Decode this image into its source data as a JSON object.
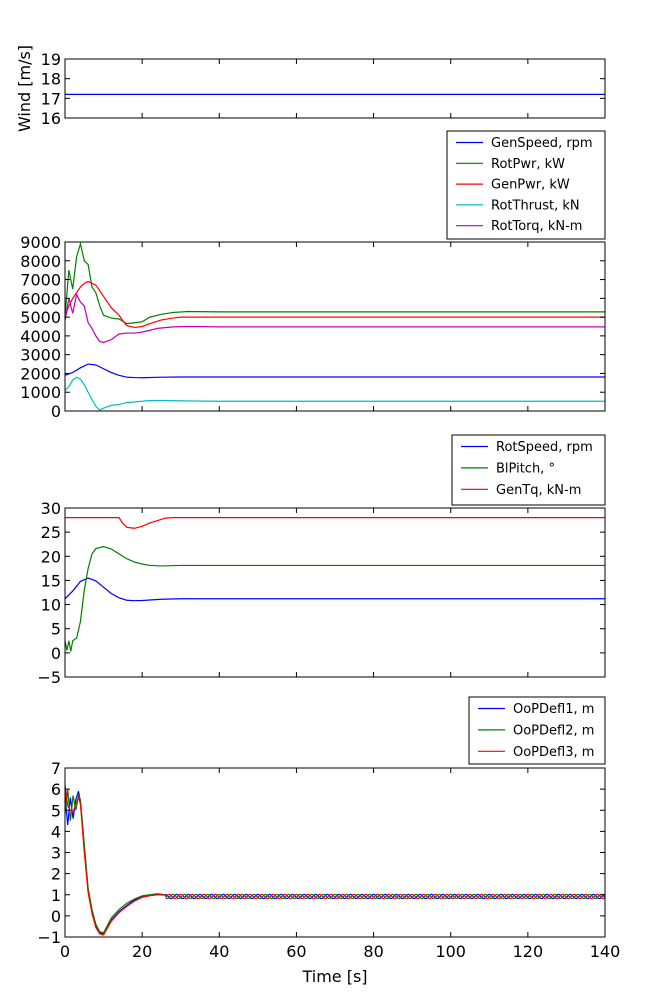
{
  "chart_data": [
    {
      "type": "line",
      "ylabel": "Wind [m/s]",
      "xlim": [
        0,
        140
      ],
      "ylim": [
        16,
        19
      ],
      "yticks": [
        16,
        17,
        18,
        19
      ],
      "yticklabels": [
        "16",
        "17",
        "18",
        "19"
      ],
      "xticks": [
        0,
        20,
        40,
        60,
        80,
        100,
        120,
        140
      ],
      "series": [
        {
          "name": "Wind",
          "color": "#0000ff",
          "x": [
            0,
            140
          ],
          "values": [
            17.2,
            17.2
          ]
        }
      ]
    },
    {
      "type": "line",
      "ylabel": "",
      "xlim": [
        0,
        140
      ],
      "ylim": [
        0,
        9000
      ],
      "yticks": [
        0,
        1000,
        2000,
        3000,
        4000,
        5000,
        6000,
        7000,
        8000,
        9000
      ],
      "yticklabels": [
        "0",
        "1000",
        "2000",
        "3000",
        "4000",
        "5000",
        "6000",
        "7000",
        "8000",
        "9000"
      ],
      "xticks": [
        0,
        20,
        40,
        60,
        80,
        100,
        120,
        140
      ],
      "legend": "above-right",
      "series": [
        {
          "name": "GenSpeed, rpm",
          "color": "#0000ff",
          "x": [
            0,
            2,
            4,
            6,
            8,
            10,
            12,
            14,
            16,
            18,
            20,
            25,
            30,
            140
          ],
          "values": [
            1900,
            2050,
            2300,
            2500,
            2450,
            2250,
            2050,
            1900,
            1800,
            1780,
            1770,
            1800,
            1810,
            1810
          ]
        },
        {
          "name": "RotPwr, kW",
          "color": "#008000",
          "x": [
            0,
            1,
            2,
            3,
            4,
            5,
            6,
            7,
            8,
            9,
            10,
            12,
            14,
            16,
            18,
            20,
            22,
            25,
            28,
            32,
            40,
            140
          ],
          "values": [
            5000,
            7500,
            6500,
            8200,
            8900,
            8000,
            7800,
            6600,
            6300,
            5600,
            5100,
            4950,
            4900,
            4650,
            4700,
            4750,
            5000,
            5150,
            5250,
            5300,
            5280,
            5280
          ]
        },
        {
          "name": "GenPwr, kW",
          "color": "#ff0000",
          "x": [
            0,
            1,
            2,
            3,
            4,
            5,
            6,
            8,
            10,
            12,
            14,
            15,
            16,
            18,
            20,
            22,
            25,
            28,
            30,
            40,
            140
          ],
          "values": [
            5000,
            5600,
            6000,
            6300,
            6600,
            6800,
            6900,
            6700,
            6100,
            5500,
            5100,
            4800,
            4550,
            4450,
            4500,
            4650,
            4850,
            4950,
            5000,
            5000,
            5000
          ]
        },
        {
          "name": "RotThrust, kN",
          "color": "#00bfbf",
          "x": [
            0,
            1,
            2,
            3,
            4,
            5,
            6,
            7,
            8,
            9,
            10,
            12,
            14,
            16,
            18,
            20,
            22,
            24,
            26,
            30,
            40,
            140
          ],
          "values": [
            1100,
            1300,
            1650,
            1800,
            1700,
            1400,
            1000,
            600,
            250,
            50,
            150,
            300,
            350,
            450,
            480,
            520,
            560,
            560,
            560,
            540,
            520,
            520
          ]
        },
        {
          "name": "RotTorq, kN-m",
          "color": "#bf00bf",
          "x": [
            0,
            1,
            2,
            3,
            4,
            5,
            6,
            7,
            8,
            9,
            10,
            12,
            14,
            16,
            18,
            20,
            24,
            28,
            32,
            40,
            140
          ],
          "values": [
            4800,
            6000,
            5200,
            6200,
            5800,
            5600,
            4700,
            4400,
            4000,
            3700,
            3650,
            3800,
            4100,
            4150,
            4150,
            4200,
            4400,
            4480,
            4500,
            4480,
            4480
          ]
        }
      ]
    },
    {
      "type": "line",
      "ylabel": "",
      "xlim": [
        0,
        140
      ],
      "ylim": [
        -5,
        30
      ],
      "yticks": [
        -5,
        0,
        5,
        10,
        15,
        20,
        25,
        30
      ],
      "yticklabels": [
        "−5",
        "0",
        "5",
        "10",
        "15",
        "20",
        "25",
        "30"
      ],
      "xticks": [
        0,
        20,
        40,
        60,
        80,
        100,
        120,
        140
      ],
      "legend": "above-right",
      "series": [
        {
          "name": "RotSpeed, rpm",
          "color": "#0000ff",
          "x": [
            0,
            2,
            4,
            6,
            8,
            10,
            12,
            14,
            16,
            18,
            20,
            25,
            30,
            140
          ],
          "values": [
            11.2,
            12.8,
            14.8,
            15.5,
            14.9,
            13.6,
            12.3,
            11.4,
            10.9,
            10.8,
            10.85,
            11.1,
            11.2,
            11.2
          ]
        },
        {
          "name": "BlPitch, °",
          "color": "#008000",
          "x": [
            0,
            0.5,
            1,
            1.5,
            2,
            2.5,
            3,
            4,
            5,
            6,
            7,
            8,
            10,
            12,
            14,
            16,
            18,
            20,
            22,
            25,
            30,
            140
          ],
          "values": [
            2.5,
            0.5,
            2.5,
            0.3,
            2.5,
            2.8,
            3.0,
            6.5,
            13,
            17.5,
            20.5,
            21.6,
            22,
            21.5,
            20.5,
            19.5,
            18.8,
            18.4,
            18.1,
            18.0,
            18.1,
            18.1
          ]
        },
        {
          "name": "GenTq, kN-m",
          "color": "#ff0000",
          "x": [
            0,
            14,
            15,
            16,
            18,
            20,
            22,
            24,
            26,
            28,
            140
          ],
          "values": [
            28,
            28,
            26.8,
            26,
            25.8,
            26.2,
            26.9,
            27.4,
            27.9,
            28,
            28
          ]
        }
      ]
    },
    {
      "type": "line",
      "ylabel": "",
      "xlabel": "Time [s]",
      "xlim": [
        0,
        140
      ],
      "ylim": [
        -1,
        7
      ],
      "yticks": [
        -1,
        0,
        1,
        2,
        3,
        4,
        5,
        6,
        7
      ],
      "yticklabels": [
        "−1",
        "0",
        "1",
        "2",
        "3",
        "4",
        "5",
        "6",
        "7"
      ],
      "xticks": [
        0,
        20,
        40,
        60,
        80,
        100,
        120,
        140
      ],
      "xticklabels": [
        "0",
        "20",
        "40",
        "60",
        "80",
        "100",
        "120",
        "140"
      ],
      "legend": "above-right",
      "series": [
        {
          "name": "OoPDefl1, m",
          "color": "#0000ff",
          "x": [
            0,
            0.7,
            1.4,
            2.1,
            2.8,
            3.5,
            4,
            5,
            6,
            7,
            8,
            9,
            10,
            12,
            14,
            16,
            18,
            20,
            22,
            24,
            26
          ],
          "values": [
            5.8,
            4.3,
            5.6,
            4.6,
            5.5,
            5.9,
            5.4,
            3.2,
            1.2,
            0.2,
            -0.5,
            -0.8,
            -0.85,
            -0.2,
            0.2,
            0.5,
            0.75,
            0.9,
            0.98,
            1.02,
            1.0
          ]
        },
        {
          "name": "OoPDefl2, m",
          "color": "#008000",
          "x": [
            0,
            0.7,
            1.4,
            2.1,
            2.8,
            3.5,
            4,
            5,
            6,
            7,
            8,
            9,
            10,
            12,
            14,
            16,
            18,
            20,
            22,
            24,
            26
          ],
          "values": [
            4.8,
            6.0,
            4.5,
            5.7,
            5.0,
            5.7,
            5.5,
            3.4,
            1.3,
            0.3,
            -0.4,
            -0.75,
            -0.8,
            -0.1,
            0.3,
            0.6,
            0.8,
            0.95,
            1.0,
            1.05,
            1.0
          ]
        },
        {
          "name": "OoPDefl3, m",
          "color": "#ff0000",
          "x": [
            0,
            0.7,
            1.4,
            2.1,
            2.8,
            3.5,
            4,
            5,
            6,
            7,
            8,
            9,
            10,
            12,
            14,
            16,
            18,
            20,
            22,
            24,
            26
          ],
          "values": [
            6.2,
            5.2,
            5.0,
            4.9,
            5.3,
            5.6,
            5.3,
            3.0,
            1.1,
            0.1,
            -0.55,
            -0.85,
            -0.9,
            -0.25,
            0.15,
            0.45,
            0.7,
            0.88,
            0.95,
            1.0,
            0.98
          ]
        }
      ],
      "steady_oscillation": {
        "from": 26,
        "to": 140,
        "mean": 0.92,
        "amplitude": 0.1,
        "period": 3.0
      }
    }
  ]
}
